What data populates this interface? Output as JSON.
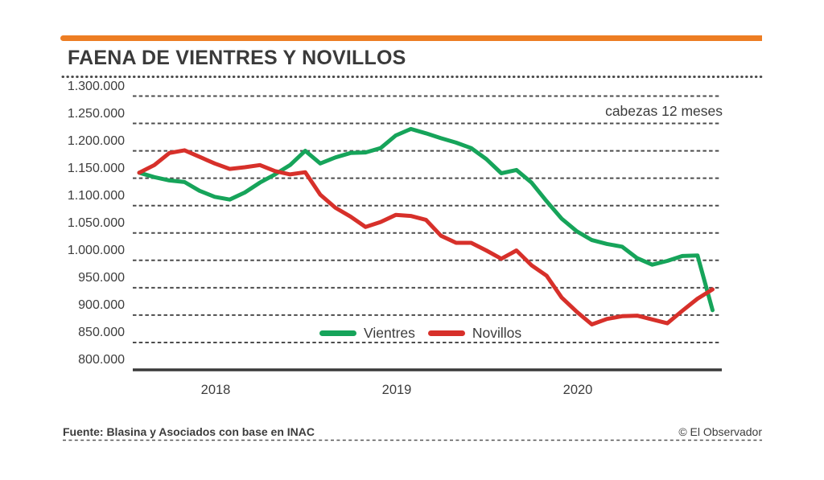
{
  "page": {
    "title": "FAENA DE VIENTRES Y NOVILLOS",
    "unit_note": "cabezas 12 meses",
    "source": "Fuente: Blasina y Asociados con base en INAC",
    "credit": "© El Observador",
    "accent_color": "#ED7D23",
    "text_color": "#3C3C3C",
    "grid_color": "#4C4C4C"
  },
  "chart_data": {
    "type": "line",
    "title": "FAENA DE VIENTRES Y NOVILLOS",
    "unit_label": "cabezas 12 meses",
    "x_tick_labels": [
      "2018",
      "2019",
      "2020"
    ],
    "x_note": "monthly points, Jan 2018 through Mar 2021 (12-month rolling head count)",
    "ylim": [
      800000,
      1300000
    ],
    "y_tick_step": 50000,
    "y_tick_labels": [
      "1.300.000",
      "1.250.000",
      "1.200.000",
      "1.150.000",
      "1.100.000",
      "1.050.000",
      "1.000.000",
      "950.000",
      "900.000",
      "850.000",
      "800.000"
    ],
    "grid": "horizontal dashed",
    "legend_position": "inside-bottom-center",
    "series": [
      {
        "name": "Vientres",
        "color": "#16A45A",
        "values": [
          1160000,
          1152000,
          1146000,
          1143000,
          1127000,
          1116000,
          1111000,
          1124000,
          1142000,
          1157000,
          1174000,
          1200000,
          1177000,
          1188000,
          1196000,
          1197000,
          1205000,
          1228000,
          1240000,
          1232000,
          1223000,
          1215000,
          1205000,
          1185000,
          1159000,
          1165000,
          1142000,
          1108000,
          1076000,
          1053000,
          1037000,
          1030000,
          1025000,
          1004000,
          992000,
          999000,
          1008000,
          1009000,
          909000
        ]
      },
      {
        "name": "Novillos",
        "color": "#D7302A",
        "values": [
          1160000,
          1174000,
          1196000,
          1201000,
          1189000,
          1177000,
          1167000,
          1170000,
          1174000,
          1163000,
          1157000,
          1161000,
          1120000,
          1096000,
          1080000,
          1061000,
          1070000,
          1083000,
          1081000,
          1074000,
          1045000,
          1032000,
          1032000,
          1018000,
          1003000,
          1018000,
          991000,
          972000,
          932000,
          906000,
          883000,
          893000,
          898000,
          899000,
          892000,
          885000,
          908000,
          930000,
          947000
        ]
      }
    ]
  }
}
